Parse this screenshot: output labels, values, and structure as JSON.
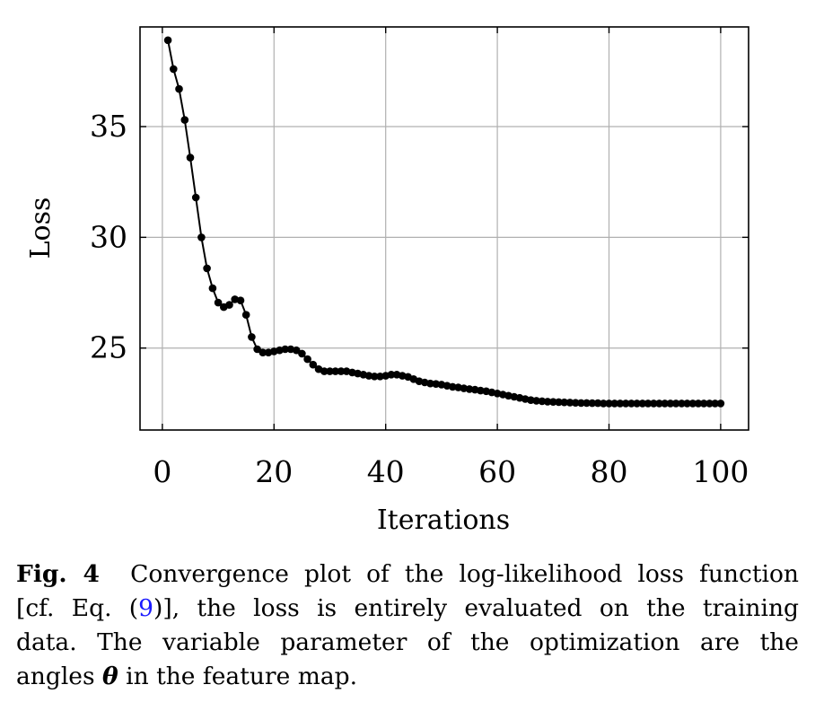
{
  "chart_data": {
    "type": "line",
    "title": "",
    "xlabel": "Iterations",
    "ylabel": "Loss",
    "xlim": [
      -4,
      105
    ],
    "ylim": [
      21.3,
      39.5
    ],
    "xticks": [
      0,
      20,
      40,
      60,
      80,
      100
    ],
    "yticks": [
      25,
      30,
      35
    ],
    "grid": true,
    "markers": true,
    "line_color": "#000000",
    "grid_color": "#b0b0b0",
    "series": [
      {
        "x": [
          1,
          2,
          3,
          4,
          5,
          6,
          7,
          8,
          9,
          10,
          11,
          12,
          13,
          14,
          15,
          16,
          17,
          18,
          19,
          20,
          21,
          22,
          23,
          24,
          25,
          26,
          27,
          28,
          29,
          30,
          31,
          32,
          33,
          34,
          35,
          36,
          37,
          38,
          39,
          40,
          41,
          42,
          43,
          44,
          45,
          46,
          47,
          48,
          49,
          50,
          51,
          52,
          53,
          54,
          55,
          56,
          57,
          58,
          59,
          60,
          61,
          62,
          63,
          64,
          65,
          66,
          67,
          68,
          69,
          70,
          71,
          72,
          73,
          74,
          75,
          76,
          77,
          78,
          79,
          80,
          81,
          82,
          83,
          84,
          85,
          86,
          87,
          88,
          89,
          90,
          91,
          92,
          93,
          94,
          95,
          96,
          97,
          98,
          99,
          100
        ],
        "y": [
          38.9,
          37.6,
          36.7,
          35.3,
          33.6,
          31.8,
          30.0,
          28.6,
          27.7,
          27.05,
          26.85,
          26.95,
          27.2,
          27.15,
          26.5,
          25.5,
          24.95,
          24.8,
          24.8,
          24.85,
          24.9,
          24.95,
          24.95,
          24.9,
          24.75,
          24.5,
          24.25,
          24.05,
          23.95,
          23.95,
          23.95,
          23.95,
          23.95,
          23.9,
          23.85,
          23.8,
          23.75,
          23.72,
          23.72,
          23.75,
          23.8,
          23.8,
          23.75,
          23.7,
          23.6,
          23.5,
          23.45,
          23.4,
          23.38,
          23.35,
          23.3,
          23.25,
          23.22,
          23.18,
          23.15,
          23.12,
          23.08,
          23.05,
          23.0,
          22.95,
          22.9,
          22.85,
          22.8,
          22.75,
          22.7,
          22.65,
          22.62,
          22.6,
          22.58,
          22.57,
          22.56,
          22.55,
          22.54,
          22.53,
          22.52,
          22.52,
          22.51,
          22.51,
          22.5,
          22.5,
          22.5,
          22.5,
          22.5,
          22.5,
          22.5,
          22.5,
          22.5,
          22.5,
          22.5,
          22.5,
          22.5,
          22.5,
          22.5,
          22.5,
          22.5,
          22.5,
          22.5,
          22.5,
          22.5,
          22.5
        ]
      }
    ]
  },
  "caption": {
    "label": "Fig. 4",
    "line1": "Convergence plot of the log-likelihood loss function",
    "line2_pre": "[cf. Eq. (",
    "eq_ref": "9",
    "line2_post": ")], the loss is entirely evaluated on the training",
    "line3": "data. The variable parameter of the optimization are the",
    "line4_pre": "angles ",
    "theta": "θ",
    "line4_post": " in the feature map."
  }
}
